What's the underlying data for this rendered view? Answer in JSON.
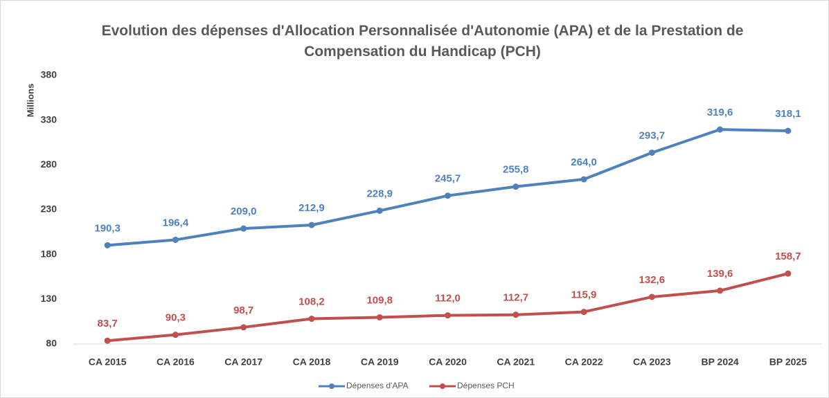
{
  "chart_data": {
    "type": "line",
    "title": "Evolution des dépenses d'Allocation Personnalisée d'Autonomie (APA) et de la Prestation de Compensation du Handicap (PCH)",
    "ylabel": "Millions",
    "categories": [
      "CA 2015",
      "CA 2016",
      "CA 2017",
      "CA 2018",
      "CA 2019",
      "CA 2020",
      "CA 2021",
      "CA 2022",
      "CA 2023",
      "BP 2024",
      "BP 2025"
    ],
    "series": [
      {
        "name": "Dépenses d'APA",
        "color": "#4f81bd",
        "values": [
          190.3,
          196.4,
          209.0,
          212.9,
          228.9,
          245.7,
          255.8,
          264.0,
          293.7,
          319.6,
          318.1
        ],
        "value_labels": [
          "190,3",
          "196,4",
          "209,0",
          "212,9",
          "228,9",
          "245,7",
          "255,8",
          "264,0",
          "293,7",
          "319,6",
          "318,1"
        ]
      },
      {
        "name": "Dépenses PCH",
        "color": "#c0504d",
        "values": [
          83.7,
          90.3,
          98.7,
          108.2,
          109.8,
          112.0,
          112.7,
          115.9,
          132.6,
          139.6,
          158.7
        ],
        "value_labels": [
          "83,7",
          "90,3",
          "98,7",
          "108,2",
          "109,8",
          "112,0",
          "112,7",
          "115,9",
          "132,6",
          "139,6",
          "158,7"
        ]
      }
    ],
    "ylim": [
      80,
      380
    ],
    "yticks": [
      80,
      130,
      180,
      230,
      280,
      330,
      380
    ],
    "grid": false,
    "legend": "bottom"
  }
}
